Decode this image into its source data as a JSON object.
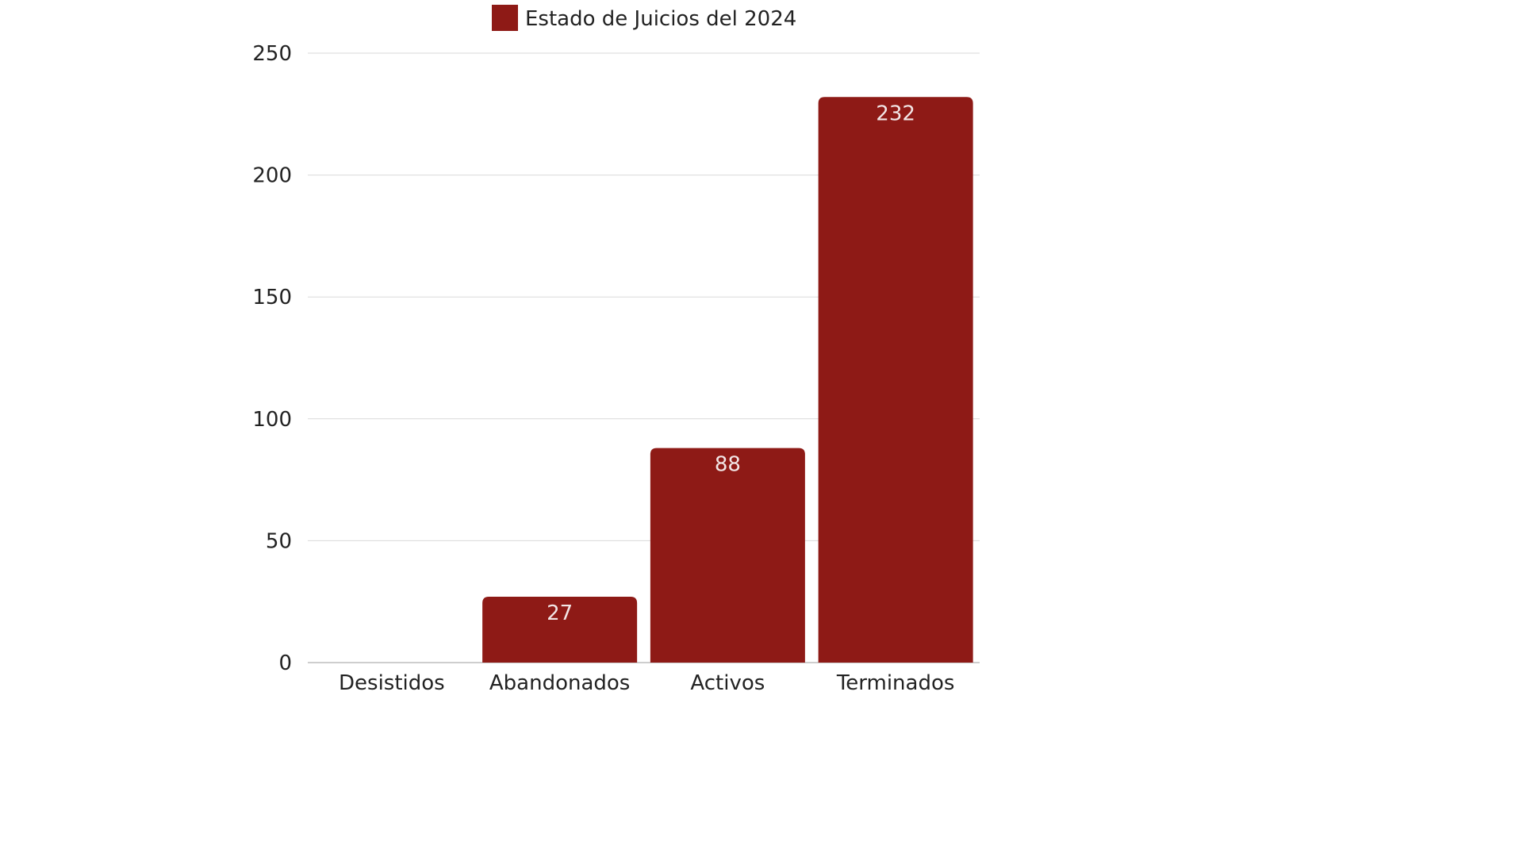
{
  "chart_data": {
    "type": "bar",
    "categories": [
      "Desistidos",
      "Abandonados",
      "Activos",
      "Terminados"
    ],
    "series": [
      {
        "name": "Estado de Juicios del 2024",
        "values": [
          0,
          27,
          88,
          232
        ],
        "data_labels": [
          "",
          "27",
          "88",
          "232"
        ]
      }
    ],
    "y_ticks": [
      "0",
      "50",
      "100",
      "150",
      "200",
      "250"
    ],
    "ylim": [
      0,
      250
    ],
    "grid": true,
    "legend_position": "top-center",
    "bar_color": "#8e1a16",
    "grid_color": "#d9d9d9"
  }
}
